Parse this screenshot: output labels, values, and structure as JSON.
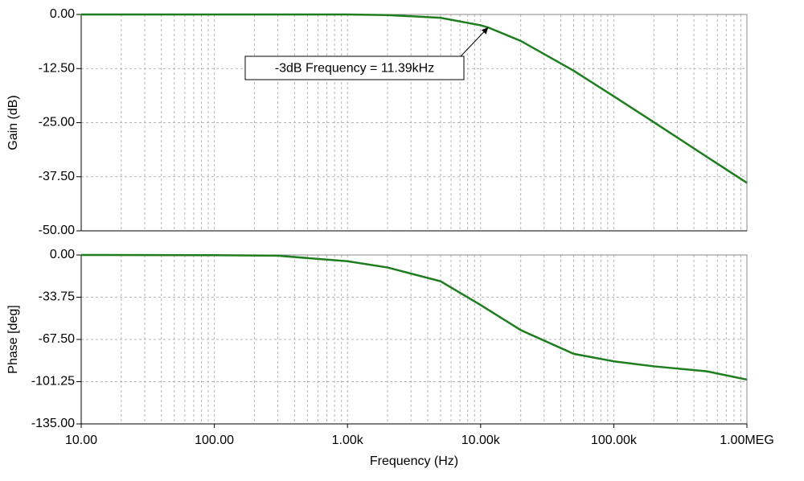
{
  "chart_data": [
    {
      "type": "line",
      "ylabel": "Gain (dB)",
      "annotation": "-3dB Frequency = 11.39kHz",
      "x": [
        10,
        100,
        300,
        1000,
        2000,
        5000,
        10000,
        11390,
        20000,
        50000,
        100000,
        200000,
        500000,
        1000000
      ],
      "values": [
        0,
        0,
        0,
        0,
        -0.13,
        -0.76,
        -2.5,
        -3.0,
        -6.1,
        -13.0,
        -18.9,
        -24.9,
        -32.9,
        -38.9
      ],
      "color": "#1e7d1e",
      "log_x": true,
      "grid": true,
      "xlim": [
        10,
        1000000
      ],
      "ylim": [
        -50,
        0
      ],
      "yticks": [
        {
          "value": 0,
          "label": "0.00"
        },
        {
          "value": -12.5,
          "label": "-12.50"
        },
        {
          "value": -25,
          "label": "-25.00"
        },
        {
          "value": -37.5,
          "label": "-37.50"
        },
        {
          "value": -50,
          "label": "-50.00"
        }
      ]
    },
    {
      "type": "line",
      "ylabel": "Phase [deg]",
      "xlabel": "Frequency (Hz)",
      "x": [
        10,
        100,
        300,
        1000,
        2000,
        5000,
        10000,
        20000,
        50000,
        100000,
        200000,
        500000,
        1000000
      ],
      "values": [
        0,
        -0.2,
        -0.6,
        -5,
        -10,
        -21,
        -40,
        -60,
        -79,
        -85,
        -89,
        -93,
        -99.6
      ],
      "color": "#1e7d1e",
      "log_x": true,
      "grid": true,
      "xlim": [
        10,
        1000000
      ],
      "ylim": [
        -135,
        0
      ],
      "xticks": [
        {
          "value": 10,
          "label": "10.00"
        },
        {
          "value": 100,
          "label": "100.00"
        },
        {
          "value": 1000,
          "label": "1.00k"
        },
        {
          "value": 10000,
          "label": "10.00k"
        },
        {
          "value": 100000,
          "label": "100.00k"
        },
        {
          "value": 1000000,
          "label": "1.00MEG"
        }
      ],
      "yticks": [
        {
          "value": 0,
          "label": "0.00"
        },
        {
          "value": -33.75,
          "label": "-33.75"
        },
        {
          "value": -67.5,
          "label": "-67.50"
        },
        {
          "value": -101.25,
          "label": "-101.25"
        },
        {
          "value": -135,
          "label": "-135.00"
        }
      ]
    }
  ]
}
